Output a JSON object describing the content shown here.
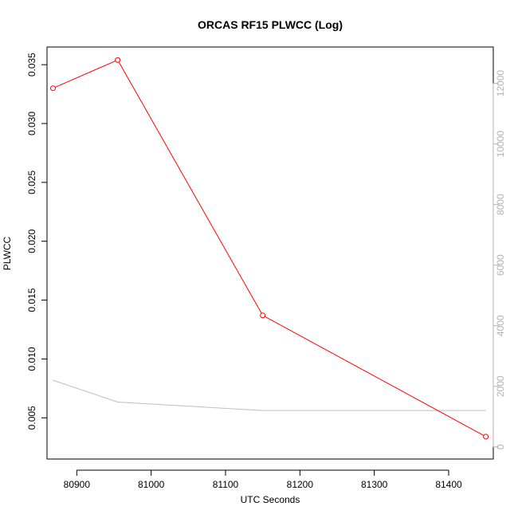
{
  "chart_data": {
    "type": "line",
    "title": "ORCAS RF15 PLWCC (Log)",
    "xlabel": "UTC Seconds",
    "ylabel": "PLWCC",
    "xlim": [
      80860,
      81460
    ],
    "ylim": [
      0.0015,
      0.0365
    ],
    "y2lim": [
      -400,
      13200
    ],
    "x_ticks": [
      80900,
      81000,
      81100,
      81200,
      81300,
      81400
    ],
    "y_ticks": [
      0.005,
      0.01,
      0.015,
      0.02,
      0.025,
      0.03,
      0.035
    ],
    "y2_ticks": [
      0,
      2000,
      4000,
      6000,
      8000,
      10000,
      12000
    ],
    "grid": false,
    "series": [
      {
        "axis": "left",
        "color": "#ff0000",
        "marker": "open-circle",
        "x": [
          80868,
          80955,
          81150,
          81450
        ],
        "y": [
          0.033,
          0.0354,
          0.0137,
          0.0034
        ]
      },
      {
        "axis": "right",
        "color": "#bebebe",
        "marker": "none",
        "x": [
          80868,
          80955,
          81150,
          81300,
          81450
        ],
        "y": [
          2200,
          1480,
          1200,
          1200,
          1200
        ]
      }
    ]
  }
}
